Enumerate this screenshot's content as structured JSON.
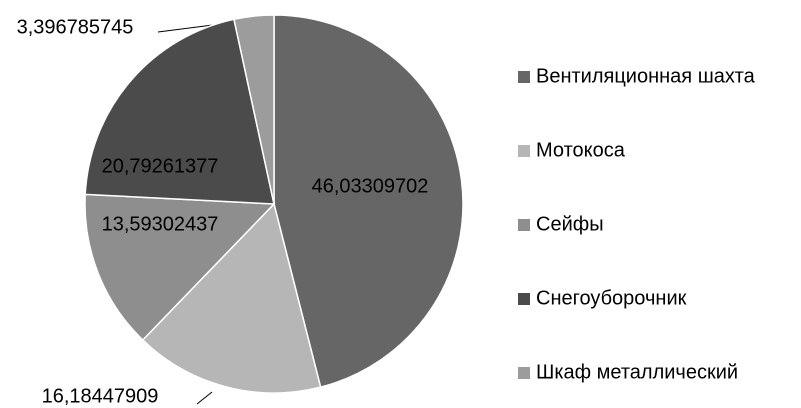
{
  "chart_data": {
    "type": "pie",
    "categories": [
      "Вентиляционная шахта",
      "Мотокоса",
      "Сейфы",
      "Снегоуборочник",
      "Шкаф металлический"
    ],
    "values": [
      46.03309702,
      16.18447909,
      13.59302437,
      20.79261377,
      3.396785745
    ],
    "value_labels": [
      "46,03309702",
      "16,18447909",
      "13,59302437",
      "20,79261377",
      "3,396785745"
    ],
    "colors": [
      "#666666",
      "#b6b6b6",
      "#8e8e8e",
      "#4b4b4b",
      "#9c9c9c"
    ],
    "legend": "right"
  }
}
